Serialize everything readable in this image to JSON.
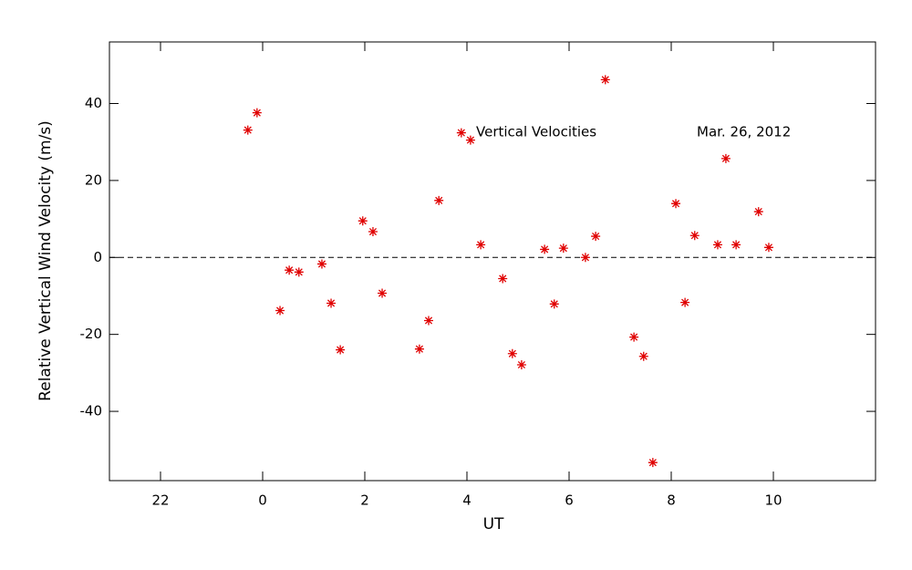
{
  "chart_data": {
    "type": "scatter",
    "x_label": "UT",
    "y_label": "Relative Vertical Wind Velocity (m/s)",
    "annotations": [
      "Vertical Velocities",
      "Mar. 26, 2012"
    ],
    "marker": "asterisk",
    "color": "#e00000",
    "reference_line": 0,
    "xlim": [
      -3,
      12
    ],
    "xticks": [
      {
        "value": -2,
        "label": "22"
      },
      0,
      2,
      4,
      6,
      8,
      10
    ],
    "ylim": [
      -58,
      56
    ],
    "yticks": [
      -40,
      -20,
      0,
      20,
      40
    ],
    "x": [
      -0.29,
      -0.11,
      0.34,
      0.52,
      0.71,
      1.16,
      1.34,
      1.52,
      1.96,
      2.16,
      2.34,
      3.07,
      3.25,
      3.45,
      3.89,
      4.07,
      4.27,
      4.7,
      4.89,
      5.07,
      5.52,
      5.71,
      5.89,
      6.32,
      6.52,
      6.71,
      7.27,
      7.46,
      7.64,
      8.09,
      8.27,
      8.46,
      8.91,
      9.07,
      9.27,
      9.71,
      9.91
    ],
    "values": [
      33.1,
      37.6,
      -13.8,
      -3.3,
      -3.8,
      -1.7,
      -11.9,
      -24.0,
      9.5,
      6.7,
      -9.3,
      -23.8,
      -16.4,
      14.8,
      32.4,
      30.5,
      3.3,
      -5.5,
      -25.0,
      -27.9,
      2.1,
      -12.1,
      2.4,
      0,
      5.5,
      46.2,
      -20.7,
      -25.7,
      -53.3,
      14.0,
      -11.7,
      5.7,
      3.3,
      25.7,
      3.3,
      11.9,
      2.6
    ]
  }
}
